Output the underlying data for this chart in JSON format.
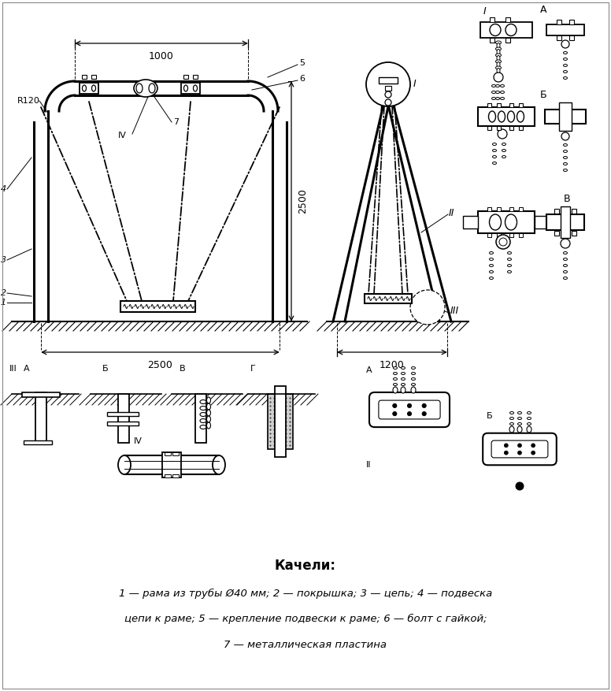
{
  "title": "Качели:",
  "legend_line1": "1 — рама из трубы Ø40 мм; 2 — покрышка; 3 — цепь; 4 — подвеска",
  "legend_line2": "цепи к раме; 5 — крепление подвески к раме; 6 — болт с гайкой;",
  "legend_line3": "7 — металлическая пластина",
  "bg_color": "#ffffff",
  "line_color": "#000000"
}
